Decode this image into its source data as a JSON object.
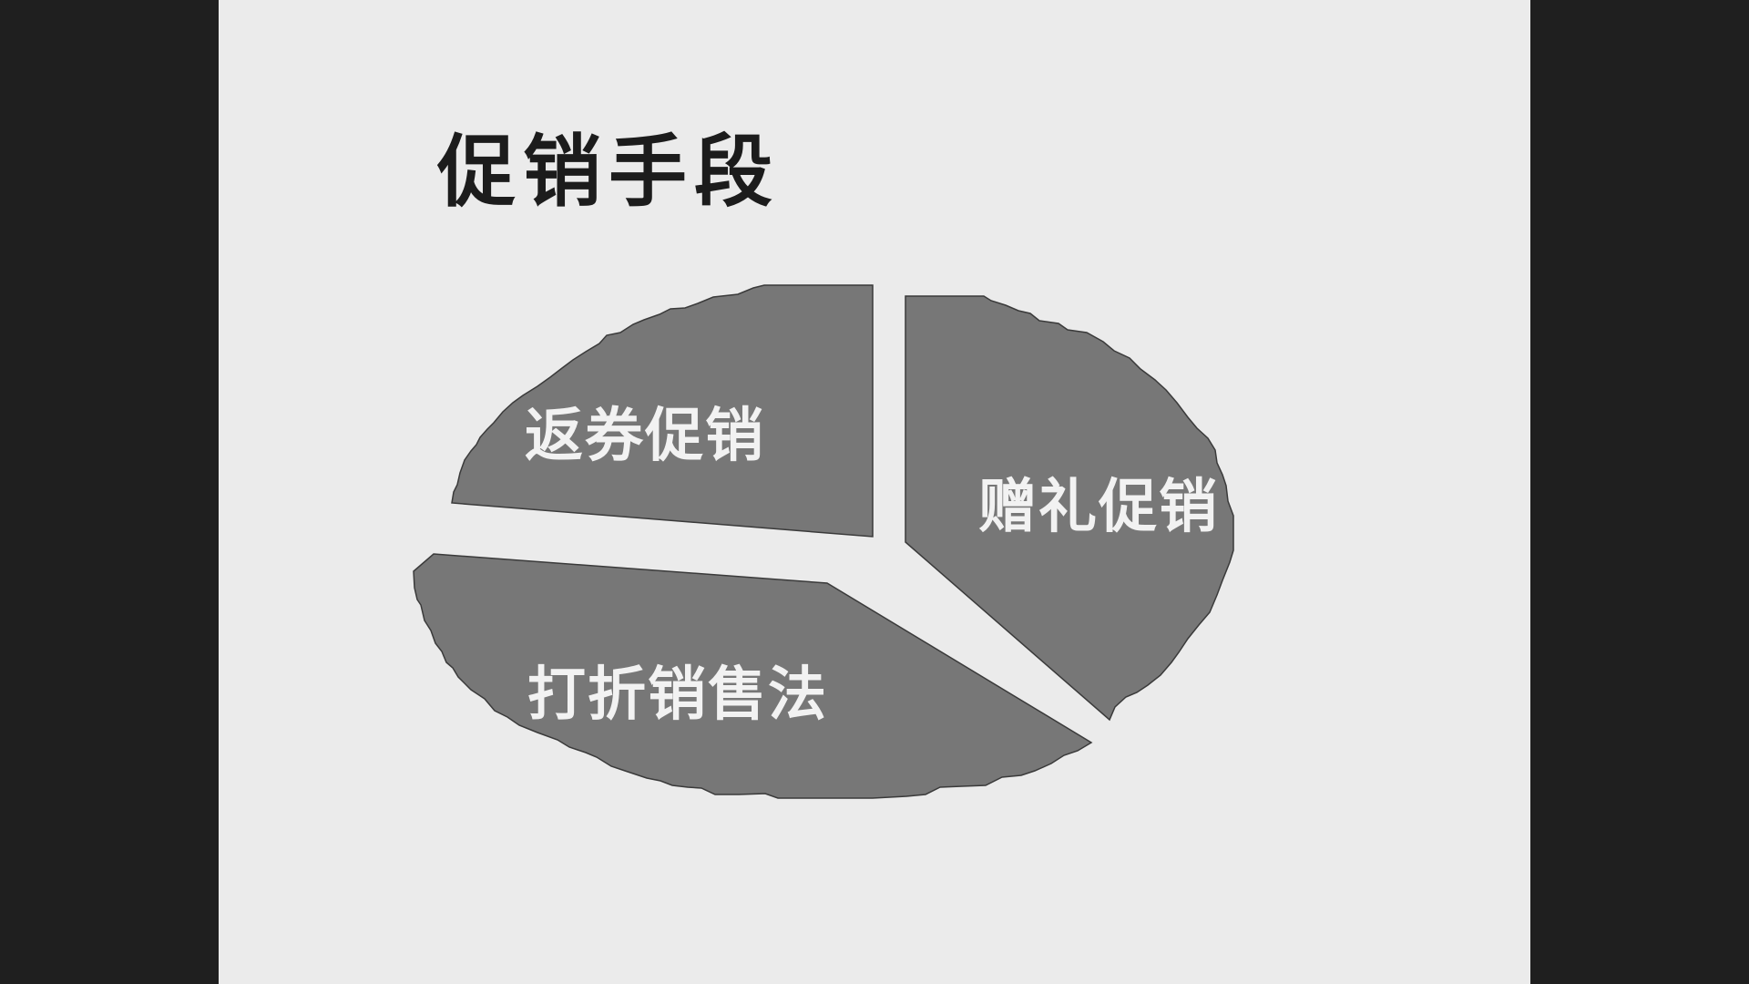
{
  "slide": {
    "title": "促销手段",
    "background_color": "#ebebeb",
    "frame_color": "#1f1f1f",
    "slice_color": "#777777",
    "label_color": "#f2f2f2"
  },
  "chart_data": {
    "type": "pie",
    "style": "exploded-3d-tilt",
    "title": "促销手段",
    "categories": [
      "返券促销",
      "赠礼促销",
      "打折销售法"
    ],
    "values": [
      25,
      37,
      38
    ]
  }
}
